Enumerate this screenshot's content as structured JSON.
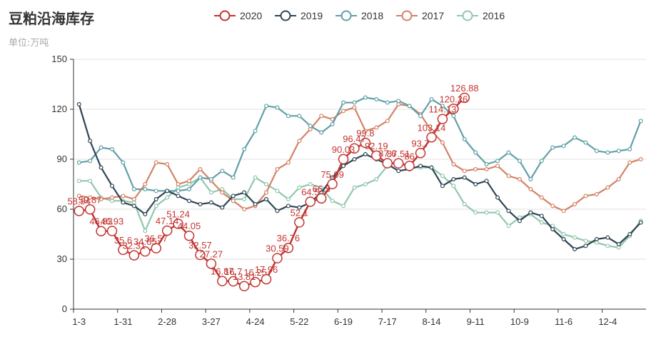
{
  "title": "豆粕沿海库存",
  "subtitle": "单位:万吨",
  "chart_data": {
    "type": "line",
    "ylim": [
      0,
      150
    ],
    "yticks": [
      0,
      30,
      60,
      90,
      120,
      150
    ],
    "legend_position": "top-center",
    "grid": "horizontal",
    "n_points": 53,
    "xtick_labels": [
      {
        "i": 0,
        "label": "1-3"
      },
      {
        "i": 4,
        "label": "1-31"
      },
      {
        "i": 8,
        "label": "2-28"
      },
      {
        "i": 12,
        "label": "3-27"
      },
      {
        "i": 16,
        "label": "4-24"
      },
      {
        "i": 20,
        "label": "5-22"
      },
      {
        "i": 24,
        "label": "6-19"
      },
      {
        "i": 28,
        "label": "7-17"
      },
      {
        "i": 32,
        "label": "8-14"
      },
      {
        "i": 36,
        "label": "9-11"
      },
      {
        "i": 40,
        "label": "10-9"
      },
      {
        "i": 44,
        "label": "11-6"
      },
      {
        "i": 48,
        "label": "12-4"
      }
    ],
    "series": [
      {
        "name": "2020",
        "color": "#c23531",
        "symbol_size": "large",
        "show_labels": true,
        "values": [
          58.94,
          59.87,
          46.83,
          46.93,
          35.6,
          32.31,
          34.65,
          36.57,
          47.14,
          51.24,
          44.05,
          32.57,
          27.27,
          16.87,
          16.7,
          13.81,
          16.25,
          17.96,
          30.59,
          36.76,
          52.1,
          64.5,
          66.5,
          75.09,
          90.03,
          96.47,
          99.8,
          92.19,
          87.6,
          87.51,
          86.0,
          93.7,
          103.14,
          114.13,
          120.26,
          126.88
        ]
      },
      {
        "name": "2019",
        "color": "#2f4554",
        "symbol_size": "small",
        "show_labels": false,
        "values": [
          123,
          101,
          85,
          74,
          64,
          62,
          57,
          66,
          71,
          68,
          65,
          63,
          64,
          61,
          68,
          70,
          63,
          66,
          59,
          62,
          61,
          64,
          70,
          79,
          86,
          90,
          93,
          90,
          87,
          83,
          84,
          86,
          85,
          74,
          78,
          79,
          75,
          77,
          67,
          59,
          53,
          58,
          56,
          48,
          42,
          36,
          38,
          42,
          43,
          39,
          45,
          52
        ]
      },
      {
        "name": "2018",
        "color": "#61a0a8",
        "symbol_size": "small",
        "show_labels": false,
        "values": [
          88,
          89,
          97,
          96,
          88,
          72,
          72,
          71,
          71,
          71,
          72,
          79,
          78,
          83,
          79,
          96,
          107,
          122,
          121,
          116,
          116,
          110,
          106,
          111,
          124,
          124,
          127,
          126,
          124,
          125,
          122,
          116,
          126,
          122,
          116,
          102,
          94,
          87,
          89,
          94,
          89,
          78,
          89,
          97,
          98,
          103,
          100,
          95,
          94,
          95,
          96,
          113
        ]
      },
      {
        "name": "2017",
        "color": "#d48265",
        "symbol_size": "small",
        "show_labels": false,
        "values": [
          68,
          67,
          66,
          67,
          68,
          66,
          75,
          88,
          87,
          75,
          77,
          84,
          77,
          70,
          65,
          60,
          62,
          70,
          84,
          88,
          101,
          108,
          116,
          114,
          119,
          121,
          107,
          109,
          113,
          123,
          122,
          117,
          107,
          100,
          87,
          83,
          84,
          84,
          86,
          80,
          78,
          72,
          67,
          62,
          59,
          63,
          68,
          69,
          73,
          78,
          88,
          90
        ]
      },
      {
        "name": "2016",
        "color": "#91c7ae",
        "symbol_size": "small",
        "show_labels": false,
        "values": [
          77,
          77,
          67,
          65,
          65,
          64,
          47,
          62,
          67,
          73,
          75,
          79,
          70,
          72,
          66,
          66,
          79,
          75,
          71,
          66,
          73,
          75,
          73,
          65,
          62,
          73,
          75,
          78,
          86,
          89,
          85,
          85,
          85,
          80,
          74,
          63,
          58,
          58,
          58,
          50,
          55,
          57,
          52,
          50,
          45,
          43,
          41,
          40,
          38,
          37,
          44,
          53
        ]
      }
    ]
  }
}
